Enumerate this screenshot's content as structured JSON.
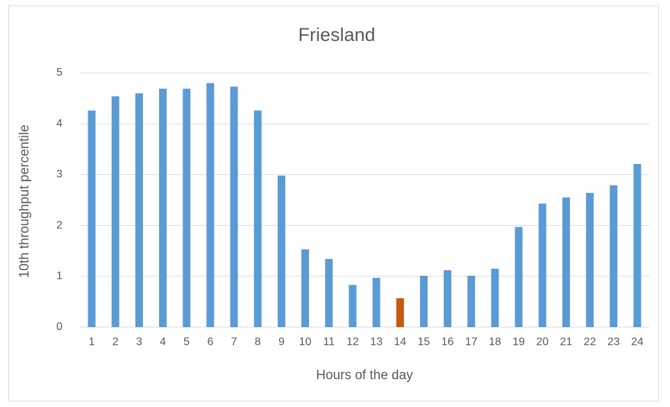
{
  "chart_data": {
    "type": "bar",
    "title": "Friesland",
    "x_label": "Hours of the day",
    "y_label": "10th throughput percentile",
    "categories": [
      "1",
      "2",
      "3",
      "4",
      "5",
      "6",
      "7",
      "8",
      "9",
      "10",
      "11",
      "12",
      "13",
      "14",
      "15",
      "16",
      "17",
      "18",
      "19",
      "20",
      "21",
      "22",
      "23",
      "24"
    ],
    "values": [
      4.26,
      4.54,
      4.6,
      4.69,
      4.69,
      4.8,
      4.73,
      4.26,
      2.98,
      1.53,
      1.34,
      0.83,
      0.97,
      0.57,
      1.01,
      1.12,
      1.01,
      1.15,
      1.97,
      2.43,
      2.55,
      2.64,
      2.79,
      3.21
    ],
    "colors": [
      "#5b9bd5",
      "#5b9bd5",
      "#5b9bd5",
      "#5b9bd5",
      "#5b9bd5",
      "#5b9bd5",
      "#5b9bd5",
      "#5b9bd5",
      "#5b9bd5",
      "#5b9bd5",
      "#5b9bd5",
      "#5b9bd5",
      "#5b9bd5",
      "#c55a11",
      "#5b9bd5",
      "#5b9bd5",
      "#5b9bd5",
      "#5b9bd5",
      "#5b9bd5",
      "#5b9bd5",
      "#5b9bd5",
      "#5b9bd5",
      "#5b9bd5",
      "#5b9bd5"
    ],
    "ylim": [
      0,
      5
    ],
    "yticks": [
      0,
      1,
      2,
      3,
      4,
      5
    ],
    "grid": true
  }
}
